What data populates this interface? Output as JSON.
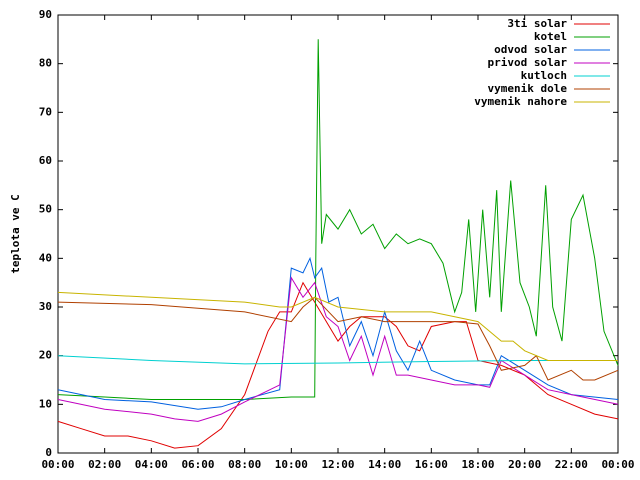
{
  "chart_data": {
    "type": "line",
    "ylabel": "teplota ve C",
    "xlim": [
      0,
      24
    ],
    "ylim": [
      0,
      90
    ],
    "xticks": [
      {
        "value": 0,
        "label": "00:00"
      },
      {
        "value": 2,
        "label": "02:00"
      },
      {
        "value": 4,
        "label": "04:00"
      },
      {
        "value": 6,
        "label": "06:00"
      },
      {
        "value": 8,
        "label": "08:00"
      },
      {
        "value": 10,
        "label": "10:00"
      },
      {
        "value": 12,
        "label": "12:00"
      },
      {
        "value": 14,
        "label": "14:00"
      },
      {
        "value": 16,
        "label": "16:00"
      },
      {
        "value": 18,
        "label": "18:00"
      },
      {
        "value": 20,
        "label": "20:00"
      },
      {
        "value": 22,
        "label": "22:00"
      },
      {
        "value": 24,
        "label": "00:00"
      }
    ],
    "yticks": [
      0,
      10,
      20,
      30,
      40,
      50,
      60,
      70,
      80,
      90
    ],
    "legend": "top-right",
    "series": [
      {
        "name": "3ti solar",
        "color": "#e00000",
        "x": [
          0,
          1,
          2,
          3,
          4,
          5,
          6,
          7,
          8,
          9,
          9.5,
          10,
          10.5,
          11,
          12,
          12.5,
          13,
          14,
          14.5,
          15,
          15.5,
          16,
          17,
          17.5,
          18,
          19,
          20,
          21,
          22,
          23,
          24
        ],
        "values": [
          6.5,
          5,
          3.5,
          3.5,
          2.5,
          1,
          1.5,
          5,
          12,
          25,
          29,
          29,
          35,
          31,
          23,
          26,
          28,
          28,
          26,
          22,
          21,
          26,
          27,
          27,
          19,
          18,
          16,
          12,
          10,
          8,
          7
        ]
      },
      {
        "name": "kotel",
        "color": "#00a000",
        "x": [
          0,
          2,
          4,
          6,
          8,
          10,
          11,
          11.05,
          11.15,
          11.3,
          11.5,
          12,
          12.5,
          13,
          13.5,
          14,
          14.5,
          15,
          15.5,
          16,
          16.5,
          17,
          17.3,
          17.6,
          17.9,
          18.2,
          18.5,
          18.8,
          19,
          19.4,
          19.8,
          20.2,
          20.5,
          20.9,
          21.2,
          21.6,
          22,
          22.5,
          23,
          23.4,
          24
        ],
        "values": [
          12,
          11.5,
          11,
          11,
          11,
          11.5,
          11.5,
          40,
          85,
          43,
          49,
          46,
          50,
          45,
          47,
          42,
          45,
          43,
          44,
          43,
          39,
          29,
          33,
          48,
          29,
          50,
          32,
          54,
          29,
          56,
          35,
          30,
          24,
          55,
          30,
          23,
          48,
          53,
          40,
          25,
          18
        ]
      },
      {
        "name": "odvod solar",
        "color": "#0060e0",
        "x": [
          0,
          2,
          4,
          6,
          7,
          8,
          9.5,
          10,
          10.5,
          10.8,
          11,
          11.3,
          11.6,
          12,
          12.5,
          13,
          13.5,
          14,
          14.5,
          15,
          15.5,
          16,
          17,
          18,
          18.5,
          19,
          20,
          21,
          22,
          24
        ],
        "values": [
          13,
          11,
          10.5,
          9,
          9.5,
          11,
          13,
          38,
          37,
          40,
          36,
          38,
          31,
          32,
          22,
          27,
          20,
          29,
          21,
          17,
          23,
          17,
          15,
          14,
          14,
          20,
          17,
          14,
          12,
          11
        ]
      },
      {
        "name": "privod solar",
        "color": "#c000c0",
        "x": [
          0,
          2,
          4,
          5,
          6,
          7,
          8,
          9.5,
          10,
          10.5,
          11,
          11.5,
          12,
          12.5,
          13,
          13.5,
          14,
          14.5,
          15,
          16,
          17,
          18,
          18.5,
          19,
          20,
          21,
          22,
          24
        ],
        "values": [
          11,
          9,
          8,
          7,
          6.5,
          8,
          10.5,
          14,
          36,
          32,
          35,
          28,
          26,
          19,
          24,
          16,
          24,
          16,
          16,
          15,
          14,
          14,
          13.5,
          19,
          16,
          13,
          12,
          10
        ]
      },
      {
        "name": "kutloch",
        "color": "#00d0d0",
        "x": [
          0,
          4,
          8,
          12,
          16,
          20,
          24
        ],
        "values": [
          20,
          19,
          18.3,
          18.5,
          18.8,
          19,
          19
        ]
      },
      {
        "name": "vymenik dole",
        "color": "#b04000",
        "x": [
          0,
          4,
          8,
          10,
          10.5,
          11,
          12,
          13,
          14,
          15,
          16,
          17,
          18,
          18.5,
          19,
          20,
          20.5,
          21,
          22,
          22.5,
          23,
          24
        ],
        "values": [
          31,
          30.5,
          29,
          27,
          30,
          32,
          27,
          28,
          27,
          27,
          27,
          27,
          26.5,
          22,
          17,
          18,
          20,
          15,
          17,
          15,
          15,
          17
        ]
      },
      {
        "name": "vymenik nahore",
        "color": "#c8b400",
        "x": [
          0,
          4,
          8,
          9.5,
          10,
          11,
          12,
          14,
          16,
          17,
          18,
          19,
          19.5,
          20,
          21,
          22,
          23,
          24
        ],
        "values": [
          33,
          32,
          31,
          30,
          30,
          32,
          30,
          29,
          29,
          28,
          27,
          23,
          23,
          21,
          19,
          19,
          19,
          19
        ]
      }
    ]
  }
}
